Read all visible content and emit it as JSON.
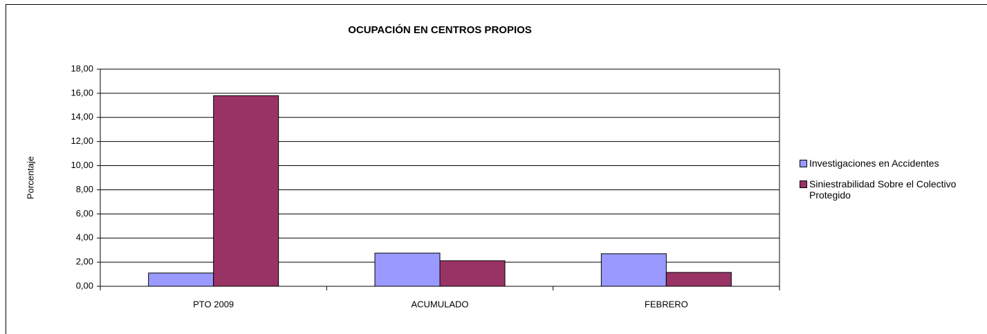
{
  "chart_data": {
    "type": "bar",
    "title": "OCUPACIÓN EN CENTROS PROPIOS",
    "y_label": "Porcentaje",
    "categories": [
      "PTO 2009",
      "ACUMULADO",
      "FEBRERO"
    ],
    "series": [
      {
        "name": "Investigaciones en Accidentes",
        "color": "#9999ff",
        "values": [
          1.1,
          2.75,
          2.7
        ]
      },
      {
        "name": "Siniestrabilidad Sobre el Colectivo Protegido",
        "color": "#993366",
        "values": [
          15.8,
          2.12,
          1.15
        ]
      }
    ],
    "ylim": [
      0,
      18
    ],
    "yticks": [
      {
        "value": 0,
        "label": "0,00"
      },
      {
        "value": 2,
        "label": "2,00"
      },
      {
        "value": 4,
        "label": "4,00"
      },
      {
        "value": 6,
        "label": "6,00"
      },
      {
        "value": 8,
        "label": "8,00"
      },
      {
        "value": 10,
        "label": "10,00"
      },
      {
        "value": 12,
        "label": "12,00"
      },
      {
        "value": 14,
        "label": "14,00"
      },
      {
        "value": 16,
        "label": "16,00"
      },
      {
        "value": 18,
        "label": "18,00"
      }
    ],
    "grid": true,
    "legend": "right"
  }
}
